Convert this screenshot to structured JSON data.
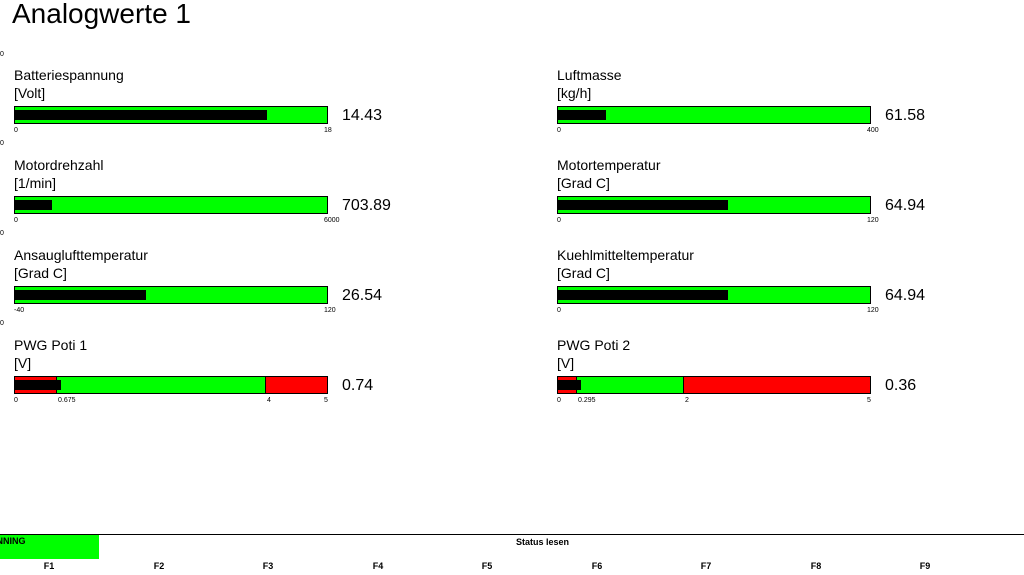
{
  "title": "Analogwerte 1",
  "colors": {
    "ok": "#00ff00",
    "alarm": "#ff0000",
    "indicator": "#000000"
  },
  "margin_ticks": [
    "0",
    "0",
    "0",
    "0"
  ],
  "gauges": [
    {
      "id": "batteriespannung",
      "name": "Batteriespannung",
      "unit": "[Volt]",
      "value": "14.43",
      "min": 0,
      "max": 18,
      "level": 14.43,
      "ticks": [
        "0",
        "18"
      ]
    },
    {
      "id": "luftmasse",
      "name": "Luftmasse",
      "unit": "[kg/h]",
      "value": "61.58",
      "min": 0,
      "max": 400,
      "level": 61.58,
      "ticks": [
        "0",
        "400"
      ]
    },
    {
      "id": "motordrehzahl",
      "name": "Motordrehzahl",
      "unit": "[1/min]",
      "value": "703.89",
      "min": 0,
      "max": 6000,
      "level": 703.89,
      "ticks": [
        "0",
        "6000"
      ]
    },
    {
      "id": "motortemperatur",
      "name": "Motortemperatur",
      "unit": "[Grad C]",
      "value": "64.94",
      "min": 0,
      "max": 120,
      "level": 64.94,
      "ticks": [
        "0",
        "120"
      ]
    },
    {
      "id": "ansaugluft",
      "name": "Ansauglufttemperatur",
      "unit": "[Grad C]",
      "value": "26.54",
      "min": -40,
      "max": 120,
      "level": 26.54,
      "ticks": [
        "-40",
        "120"
      ]
    },
    {
      "id": "kuehlmittel",
      "name": "Kuehlmitteltemperatur",
      "unit": "[Grad C]",
      "value": "64.94",
      "min": 0,
      "max": 120,
      "level": 64.94,
      "ticks": [
        "0",
        "120"
      ]
    },
    {
      "id": "pwg-poti-1",
      "name": "PWG Poti 1",
      "unit": "[V]",
      "value": "0.74",
      "min": 0,
      "max": 5,
      "level": 0.74,
      "low": 0.675,
      "high": 4,
      "ticks": [
        "0",
        "0.675",
        "4",
        "5"
      ]
    },
    {
      "id": "pwg-poti-2",
      "name": "PWG Poti 2",
      "unit": "[V]",
      "value": "0.36",
      "min": 0,
      "max": 5,
      "level": 0.36,
      "low": 0.295,
      "high": 2,
      "ticks": [
        "0",
        "0.295",
        "2",
        "5"
      ]
    }
  ],
  "status": {
    "running": "UNNING",
    "text": "Status lesen"
  },
  "function_keys": [
    "F1",
    "F2",
    "F3",
    "F4",
    "F5",
    "F6",
    "F7",
    "F8",
    "F9"
  ]
}
